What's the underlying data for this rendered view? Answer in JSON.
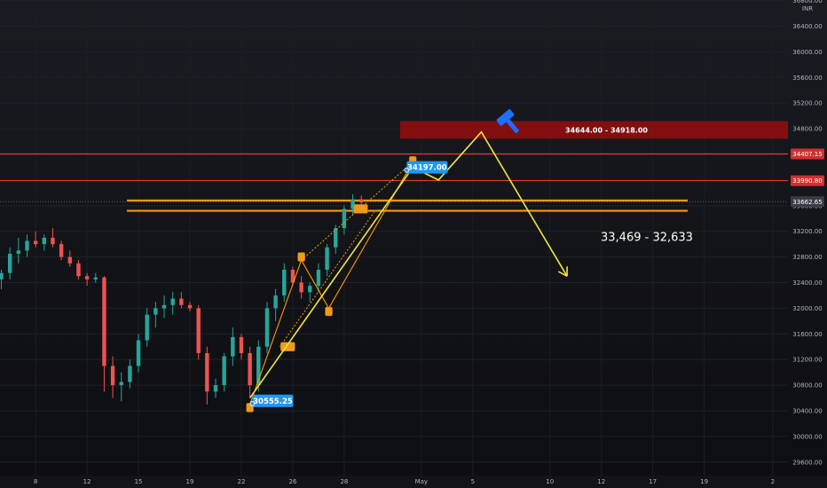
{
  "chart_data": {
    "type": "candlestick",
    "currency": "INR",
    "y_axis": {
      "ticks": [
        "36800.00",
        "36400.00",
        "36000.00",
        "35600.00",
        "35200.00",
        "34800.00",
        "34400.00",
        "34000.00",
        "33600.00",
        "33200.00",
        "32800.00",
        "32400.00",
        "32000.00",
        "31600.00",
        "31200.00",
        "30800.00",
        "30400.00",
        "30000.00",
        "29600.00"
      ],
      "tick_values": [
        36800,
        36400,
        36000,
        35600,
        35200,
        34800,
        34400,
        34000,
        33600,
        33200,
        32800,
        32400,
        32000,
        31600,
        31200,
        30800,
        30400,
        30000,
        29600
      ],
      "range": [
        29400,
        36900
      ]
    },
    "x_axis": {
      "ticks": [
        {
          "label": "8",
          "slot": 4
        },
        {
          "label": "12",
          "slot": 10
        },
        {
          "label": "15",
          "slot": 16
        },
        {
          "label": "19",
          "slot": 22
        },
        {
          "label": "22",
          "slot": 28
        },
        {
          "label": "26",
          "slot": 34
        },
        {
          "label": "28",
          "slot": 40
        },
        {
          "label": "May",
          "slot": 49
        },
        {
          "label": "5",
          "slot": 55
        },
        {
          "label": "10",
          "slot": 64
        },
        {
          "label": "12",
          "slot": 70
        },
        {
          "label": "17",
          "slot": 76
        },
        {
          "label": "19",
          "slot": 82
        },
        {
          "label": "2",
          "slot": 90
        }
      ]
    },
    "candles": [
      [
        32450,
        32600,
        32300,
        32550
      ],
      [
        32550,
        32950,
        32450,
        32850
      ],
      [
        32850,
        33100,
        32700,
        32900
      ],
      [
        32900,
        33150,
        32800,
        33050
      ],
      [
        33050,
        33200,
        32950,
        33000
      ],
      [
        33000,
        33150,
        32900,
        33100
      ],
      [
        33100,
        33250,
        32950,
        33000
      ],
      [
        33000,
        33050,
        32750,
        32800
      ],
      [
        32800,
        32900,
        32650,
        32700
      ],
      [
        32700,
        32750,
        32450,
        32500
      ],
      [
        32500,
        32550,
        32350,
        32450
      ],
      [
        32450,
        32550,
        32400,
        32480
      ],
      [
        32480,
        32500,
        30700,
        31100
      ],
      [
        31100,
        31250,
        30600,
        30800
      ],
      [
        30800,
        31000,
        30550,
        30850
      ],
      [
        30850,
        31200,
        30750,
        31100
      ],
      [
        31100,
        31600,
        31000,
        31500
      ],
      [
        31500,
        32000,
        31400,
        31900
      ],
      [
        31900,
        32100,
        31700,
        32000
      ],
      [
        32000,
        32200,
        31850,
        32050
      ],
      [
        32050,
        32250,
        31900,
        32150
      ],
      [
        32150,
        32250,
        32000,
        32050
      ],
      [
        32050,
        32100,
        31950,
        32000
      ],
      [
        32000,
        32050,
        31200,
        31300
      ],
      [
        31300,
        31400,
        30500,
        30700
      ],
      [
        30700,
        30900,
        30600,
        30800
      ],
      [
        30800,
        31300,
        30700,
        31250
      ],
      [
        31250,
        31700,
        31100,
        31550
      ],
      [
        31550,
        31600,
        31200,
        31300
      ],
      [
        31300,
        31400,
        30600,
        30800
      ],
      [
        30800,
        31500,
        30700,
        31400
      ],
      [
        31400,
        32100,
        31300,
        32000
      ],
      [
        32000,
        32300,
        31800,
        32200
      ],
      [
        32200,
        32700,
        32100,
        32600
      ],
      [
        32600,
        32650,
        32350,
        32400
      ],
      [
        32400,
        32500,
        32150,
        32250
      ],
      [
        32250,
        32400,
        32100,
        32350
      ],
      [
        32350,
        32700,
        32250,
        32600
      ],
      [
        32600,
        33000,
        32500,
        32950
      ],
      [
        32950,
        33300,
        32850,
        33250
      ],
      [
        33250,
        33600,
        33150,
        33550
      ],
      [
        33550,
        33780,
        33450,
        33700
      ],
      [
        33700,
        33760,
        33600,
        33650
      ]
    ],
    "levels": [
      {
        "value": 34407.15,
        "label": "34407.15",
        "color": "#e53935",
        "kind": "resistance"
      },
      {
        "value": 33990.8,
        "label": "33990.80",
        "color": "#e53935",
        "kind": "resistance"
      },
      {
        "value": 33662.65,
        "label": "33662.65",
        "color": "#787b86",
        "kind": "last-price"
      }
    ],
    "support_band": {
      "top": 33680,
      "bottom": 33520,
      "color": "#ff9800"
    },
    "resistance_zone": {
      "top": 34918,
      "bottom": 34644,
      "label": "34644.00 - 34918.00",
      "color": "#8b0f0f"
    },
    "callouts": [
      {
        "label": "34197.00",
        "value": 34197,
        "slot": 47.5
      },
      {
        "label": "30555.25",
        "value": 30555,
        "slot": 29.5
      }
    ],
    "projection": {
      "color": "#f0e442",
      "path": [
        [
          29,
          30600
        ],
        [
          48,
          34197
        ],
        [
          51,
          34000
        ],
        [
          56,
          34750
        ],
        [
          66,
          32500
        ]
      ],
      "target_label": "33,469 - 32,633"
    }
  }
}
